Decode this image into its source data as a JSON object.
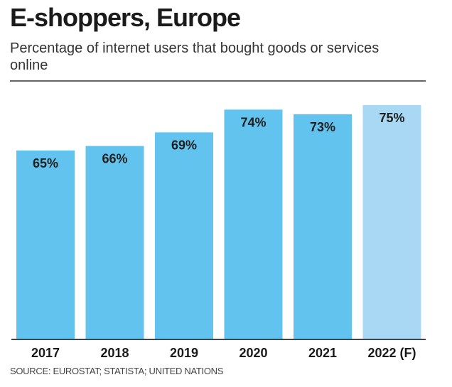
{
  "title": "E-shoppers, Europe",
  "subtitle": "Percentage of internet users that bought goods or services online",
  "source": "SOURCE: EUROSTAT; STATISTA; UNITED NATIONS",
  "colors": {
    "bar": "#62c3ee",
    "bar_forecast": "#a8d8f3",
    "label": "#1f1f1f",
    "axis": "#444444"
  },
  "chart_data": {
    "type": "bar",
    "title": "E-shoppers, Europe",
    "subtitle": "Percentage of internet users that bought goods or services online",
    "xlabel": "",
    "ylabel": "",
    "categories": [
      "2017",
      "2018",
      "2019",
      "2020",
      "2021",
      "2022 (F)"
    ],
    "values": [
      65,
      66,
      69,
      74,
      73,
      75
    ],
    "data_labels": [
      "65%",
      "66%",
      "69%",
      "74%",
      "73%",
      "75%"
    ],
    "forecast": [
      false,
      false,
      false,
      false,
      false,
      true
    ],
    "unit": "%",
    "grid": false,
    "legend": "none",
    "source": "SOURCE: EUROSTAT; STATISTA; UNITED NATIONS"
  }
}
